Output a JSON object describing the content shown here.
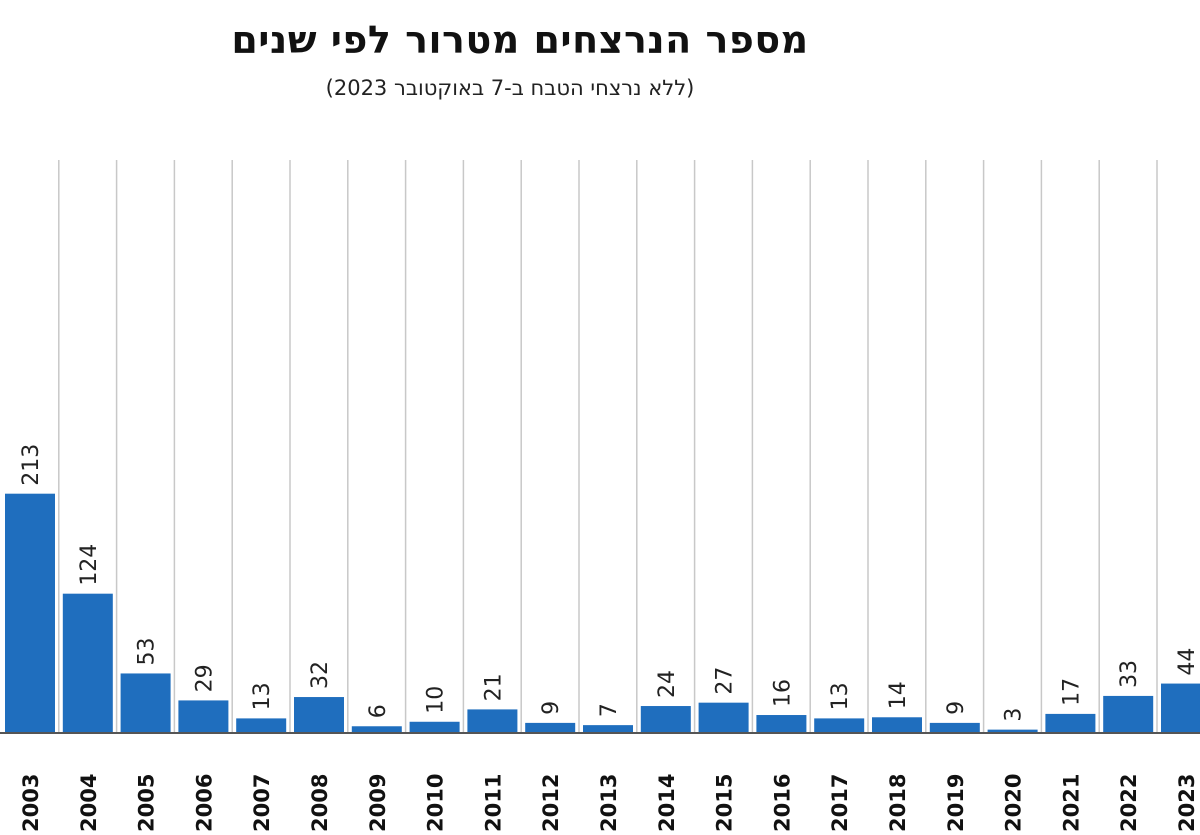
{
  "chart_data": {
    "type": "bar",
    "title": "מספר הנרצחים מטרור לפי שנים",
    "subtitle": "(ללא נרצחי הטבח ב-7 באוקטובר 2023)",
    "categories": [
      "2003",
      "2004",
      "2005",
      "2006",
      "2007",
      "2008",
      "2009",
      "2010",
      "2011",
      "2012",
      "2013",
      "2014",
      "2015",
      "2016",
      "2017",
      "2018",
      "2019",
      "2020",
      "2021",
      "2022",
      "2023"
    ],
    "values": [
      213,
      124,
      53,
      29,
      13,
      32,
      6,
      10,
      21,
      9,
      7,
      24,
      27,
      16,
      13,
      14,
      9,
      3,
      17,
      33,
      44
    ],
    "xlabel": "",
    "ylabel": "",
    "ylim": [
      0,
      510
    ],
    "grid": true,
    "bar_color": "#1f6ebe",
    "grid_color": "#c8c8c8"
  }
}
